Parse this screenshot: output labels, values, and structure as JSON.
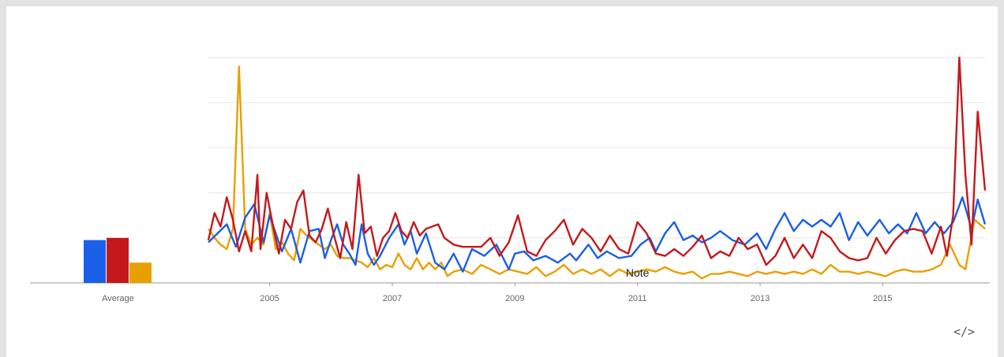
{
  "chart_data": {
    "type": "line",
    "title": "",
    "xlabel": "",
    "ylabel": "",
    "ylim": [
      0,
      100
    ],
    "xlim": [
      2004.0,
      2016.67
    ],
    "x_ticks": [
      2005,
      2007,
      2009,
      2011,
      2013,
      2015
    ],
    "x_tick_labels": [
      "2005",
      "2007",
      "2009",
      "2011",
      "2013",
      "2015"
    ],
    "grid": true,
    "legend": "none",
    "colors": [
      "#1a5fe8",
      "#c4191c",
      "#e8a000"
    ],
    "average_label": "Average",
    "averages": [
      19,
      20,
      9
    ],
    "note_label": "Note",
    "note_x": 2011.0,
    "embed_icon": "code-embed-icon",
    "embed_glyph": "</>",
    "series": [
      {
        "color": "#1a5fe8",
        "points": [
          [
            2004.0,
            18
          ],
          [
            2004.15,
            22
          ],
          [
            2004.3,
            26
          ],
          [
            2004.45,
            16
          ],
          [
            2004.6,
            29
          ],
          [
            2004.75,
            35
          ],
          [
            2004.9,
            18
          ],
          [
            2005.0,
            30
          ],
          [
            2005.1,
            22
          ],
          [
            2005.2,
            14
          ],
          [
            2005.35,
            24
          ],
          [
            2005.5,
            9
          ],
          [
            2005.65,
            23
          ],
          [
            2005.8,
            24
          ],
          [
            2005.9,
            11
          ],
          [
            2006.0,
            19
          ],
          [
            2006.1,
            26
          ],
          [
            2006.2,
            17
          ],
          [
            2006.3,
            13
          ],
          [
            2006.4,
            8
          ],
          [
            2006.5,
            26
          ],
          [
            2006.6,
            13
          ],
          [
            2006.7,
            8
          ],
          [
            2006.8,
            12
          ],
          [
            2006.95,
            20
          ],
          [
            2007.1,
            26
          ],
          [
            2007.2,
            17
          ],
          [
            2007.3,
            23
          ],
          [
            2007.4,
            13
          ],
          [
            2007.55,
            22
          ],
          [
            2007.7,
            9
          ],
          [
            2007.85,
            6
          ],
          [
            2008.0,
            13
          ],
          [
            2008.15,
            5
          ],
          [
            2008.3,
            15
          ],
          [
            2008.5,
            12
          ],
          [
            2008.7,
            17
          ],
          [
            2008.9,
            6
          ],
          [
            2009.0,
            13
          ],
          [
            2009.15,
            14
          ],
          [
            2009.3,
            10
          ],
          [
            2009.5,
            12
          ],
          [
            2009.7,
            9
          ],
          [
            2009.9,
            13
          ],
          [
            2010.0,
            10
          ],
          [
            2010.2,
            17
          ],
          [
            2010.35,
            11
          ],
          [
            2010.5,
            14
          ],
          [
            2010.7,
            11
          ],
          [
            2010.9,
            12
          ],
          [
            2011.05,
            17
          ],
          [
            2011.2,
            20
          ],
          [
            2011.3,
            14
          ],
          [
            2011.45,
            22
          ],
          [
            2011.6,
            27
          ],
          [
            2011.75,
            19
          ],
          [
            2011.9,
            21
          ],
          [
            2012.05,
            18
          ],
          [
            2012.2,
            20
          ],
          [
            2012.35,
            23
          ],
          [
            2012.55,
            19
          ],
          [
            2012.75,
            17
          ],
          [
            2012.95,
            22
          ],
          [
            2013.1,
            15
          ],
          [
            2013.25,
            24
          ],
          [
            2013.4,
            31
          ],
          [
            2013.55,
            23
          ],
          [
            2013.7,
            28
          ],
          [
            2013.85,
            25
          ],
          [
            2014.0,
            28
          ],
          [
            2014.15,
            25
          ],
          [
            2014.3,
            31
          ],
          [
            2014.45,
            19
          ],
          [
            2014.6,
            27
          ],
          [
            2014.75,
            21
          ],
          [
            2014.95,
            28
          ],
          [
            2015.1,
            22
          ],
          [
            2015.25,
            26
          ],
          [
            2015.4,
            22
          ],
          [
            2015.55,
            31
          ],
          [
            2015.7,
            22
          ],
          [
            2015.85,
            27
          ],
          [
            2016.0,
            22
          ],
          [
            2016.15,
            27
          ],
          [
            2016.3,
            38
          ],
          [
            2016.45,
            24
          ],
          [
            2016.55,
            37
          ],
          [
            2016.67,
            26
          ]
        ]
      },
      {
        "color": "#c4191c",
        "points": [
          [
            2004.0,
            19
          ],
          [
            2004.1,
            31
          ],
          [
            2004.2,
            25
          ],
          [
            2004.3,
            38
          ],
          [
            2004.4,
            28
          ],
          [
            2004.5,
            14
          ],
          [
            2004.6,
            23
          ],
          [
            2004.7,
            14
          ],
          [
            2004.8,
            48
          ],
          [
            2004.85,
            15
          ],
          [
            2004.95,
            40
          ],
          [
            2005.05,
            26
          ],
          [
            2005.15,
            13
          ],
          [
            2005.25,
            28
          ],
          [
            2005.35,
            24
          ],
          [
            2005.45,
            36
          ],
          [
            2005.55,
            41
          ],
          [
            2005.65,
            21
          ],
          [
            2005.75,
            18
          ],
          [
            2005.85,
            24
          ],
          [
            2005.95,
            33
          ],
          [
            2006.05,
            21
          ],
          [
            2006.15,
            11
          ],
          [
            2006.25,
            27
          ],
          [
            2006.35,
            15
          ],
          [
            2006.45,
            48
          ],
          [
            2006.55,
            22
          ],
          [
            2006.65,
            25
          ],
          [
            2006.75,
            12
          ],
          [
            2006.85,
            20
          ],
          [
            2006.95,
            23
          ],
          [
            2007.05,
            31
          ],
          [
            2007.15,
            23
          ],
          [
            2007.25,
            20
          ],
          [
            2007.35,
            27
          ],
          [
            2007.45,
            21
          ],
          [
            2007.55,
            24
          ],
          [
            2007.65,
            25
          ],
          [
            2007.75,
            26
          ],
          [
            2007.85,
            20
          ],
          [
            2008.0,
            17
          ],
          [
            2008.15,
            16
          ],
          [
            2008.3,
            16
          ],
          [
            2008.45,
            16
          ],
          [
            2008.6,
            20
          ],
          [
            2008.75,
            12
          ],
          [
            2008.9,
            18
          ],
          [
            2009.05,
            30
          ],
          [
            2009.2,
            14
          ],
          [
            2009.35,
            12
          ],
          [
            2009.5,
            19
          ],
          [
            2009.65,
            23
          ],
          [
            2009.8,
            28
          ],
          [
            2009.95,
            17
          ],
          [
            2010.1,
            24
          ],
          [
            2010.25,
            20
          ],
          [
            2010.4,
            14
          ],
          [
            2010.55,
            21
          ],
          [
            2010.7,
            15
          ],
          [
            2010.85,
            13
          ],
          [
            2011.0,
            27
          ],
          [
            2011.15,
            22
          ],
          [
            2011.3,
            13
          ],
          [
            2011.45,
            12
          ],
          [
            2011.6,
            15
          ],
          [
            2011.75,
            12
          ],
          [
            2011.9,
            16
          ],
          [
            2012.05,
            21
          ],
          [
            2012.2,
            11
          ],
          [
            2012.35,
            14
          ],
          [
            2012.5,
            12
          ],
          [
            2012.65,
            20
          ],
          [
            2012.8,
            15
          ],
          [
            2012.95,
            17
          ],
          [
            2013.1,
            8
          ],
          [
            2013.25,
            12
          ],
          [
            2013.4,
            20
          ],
          [
            2013.55,
            11
          ],
          [
            2013.7,
            17
          ],
          [
            2013.85,
            11
          ],
          [
            2014.0,
            23
          ],
          [
            2014.15,
            20
          ],
          [
            2014.3,
            14
          ],
          [
            2014.45,
            11
          ],
          [
            2014.6,
            10
          ],
          [
            2014.75,
            11
          ],
          [
            2014.9,
            20
          ],
          [
            2015.05,
            13
          ],
          [
            2015.2,
            19
          ],
          [
            2015.35,
            23
          ],
          [
            2015.5,
            24
          ],
          [
            2015.65,
            23
          ],
          [
            2015.8,
            13
          ],
          [
            2015.95,
            25
          ],
          [
            2016.05,
            12
          ],
          [
            2016.15,
            30
          ],
          [
            2016.25,
            100
          ],
          [
            2016.35,
            48
          ],
          [
            2016.45,
            17
          ],
          [
            2016.55,
            76
          ],
          [
            2016.67,
            41
          ]
        ]
      },
      {
        "color": "#e8a000",
        "points": [
          [
            2004.0,
            24
          ],
          [
            2004.1,
            20
          ],
          [
            2004.2,
            17
          ],
          [
            2004.3,
            15
          ],
          [
            2004.4,
            24
          ],
          [
            2004.5,
            96
          ],
          [
            2004.6,
            24
          ],
          [
            2004.7,
            17
          ],
          [
            2004.8,
            20
          ],
          [
            2004.9,
            17
          ],
          [
            2005.0,
            31
          ],
          [
            2005.1,
            15
          ],
          [
            2005.2,
            18
          ],
          [
            2005.3,
            13
          ],
          [
            2005.4,
            10
          ],
          [
            2005.5,
            24
          ],
          [
            2005.6,
            21
          ],
          [
            2005.7,
            19
          ],
          [
            2005.8,
            17
          ],
          [
            2005.9,
            15
          ],
          [
            2006.0,
            17
          ],
          [
            2006.1,
            12
          ],
          [
            2006.2,
            11
          ],
          [
            2006.3,
            11
          ],
          [
            2006.4,
            10
          ],
          [
            2006.5,
            9
          ],
          [
            2006.6,
            7
          ],
          [
            2006.7,
            11
          ],
          [
            2006.8,
            6
          ],
          [
            2006.9,
            8
          ],
          [
            2007.0,
            7
          ],
          [
            2007.1,
            13
          ],
          [
            2007.2,
            8
          ],
          [
            2007.3,
            6
          ],
          [
            2007.4,
            11
          ],
          [
            2007.5,
            6
          ],
          [
            2007.6,
            9
          ],
          [
            2007.7,
            6
          ],
          [
            2007.8,
            9
          ],
          [
            2007.9,
            3
          ],
          [
            2008.0,
            5
          ],
          [
            2008.15,
            6
          ],
          [
            2008.3,
            4
          ],
          [
            2008.45,
            8
          ],
          [
            2008.6,
            6
          ],
          [
            2008.75,
            4
          ],
          [
            2008.9,
            6
          ],
          [
            2009.05,
            5
          ],
          [
            2009.2,
            4
          ],
          [
            2009.35,
            7
          ],
          [
            2009.5,
            3
          ],
          [
            2009.65,
            5
          ],
          [
            2009.8,
            8
          ],
          [
            2009.95,
            4
          ],
          [
            2010.1,
            6
          ],
          [
            2010.25,
            4
          ],
          [
            2010.4,
            6
          ],
          [
            2010.55,
            3
          ],
          [
            2010.7,
            6
          ],
          [
            2010.85,
            4
          ],
          [
            2011.0,
            5
          ],
          [
            2011.15,
            6
          ],
          [
            2011.3,
            5
          ],
          [
            2011.45,
            7
          ],
          [
            2011.6,
            5
          ],
          [
            2011.75,
            4
          ],
          [
            2011.9,
            5
          ],
          [
            2012.05,
            2
          ],
          [
            2012.2,
            4
          ],
          [
            2012.35,
            4
          ],
          [
            2012.5,
            5
          ],
          [
            2012.65,
            4
          ],
          [
            2012.8,
            3
          ],
          [
            2012.95,
            5
          ],
          [
            2013.1,
            4
          ],
          [
            2013.25,
            5
          ],
          [
            2013.4,
            4
          ],
          [
            2013.55,
            5
          ],
          [
            2013.7,
            4
          ],
          [
            2013.85,
            6
          ],
          [
            2014.0,
            4
          ],
          [
            2014.15,
            8
          ],
          [
            2014.3,
            5
          ],
          [
            2014.45,
            5
          ],
          [
            2014.6,
            4
          ],
          [
            2014.75,
            5
          ],
          [
            2014.9,
            4
          ],
          [
            2015.05,
            3
          ],
          [
            2015.2,
            5
          ],
          [
            2015.35,
            6
          ],
          [
            2015.5,
            5
          ],
          [
            2015.65,
            5
          ],
          [
            2015.8,
            6
          ],
          [
            2015.95,
            8
          ],
          [
            2016.1,
            17
          ],
          [
            2016.25,
            8
          ],
          [
            2016.35,
            6
          ],
          [
            2016.5,
            28
          ],
          [
            2016.67,
            24
          ]
        ]
      }
    ]
  }
}
